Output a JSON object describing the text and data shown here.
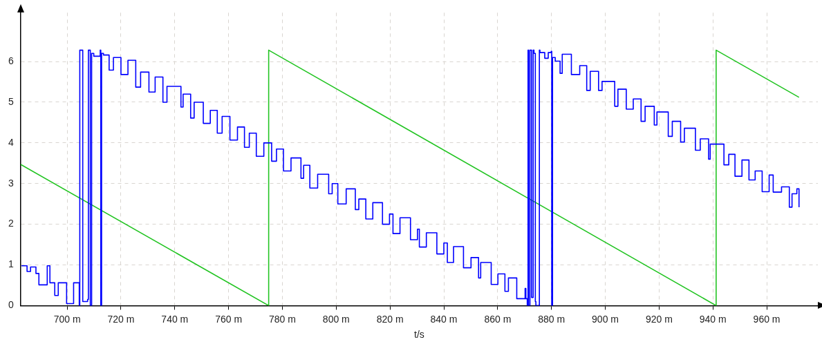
{
  "chart_data": {
    "type": "line",
    "xlabel": "t/s",
    "xlim": [
      682.7,
      979
    ],
    "ylim": [
      0,
      7.2
    ],
    "xticks": [
      {
        "value": 700,
        "label": "700 m"
      },
      {
        "value": 720,
        "label": "720 m"
      },
      {
        "value": 740,
        "label": "740 m"
      },
      {
        "value": 760,
        "label": "760 m"
      },
      {
        "value": 780,
        "label": "780 m"
      },
      {
        "value": 800,
        "label": "800 m"
      },
      {
        "value": 820,
        "label": "820 m"
      },
      {
        "value": 840,
        "label": "840 m"
      },
      {
        "value": 860,
        "label": "860 m"
      },
      {
        "value": 880,
        "label": "880 m"
      },
      {
        "value": 900,
        "label": "900 m"
      },
      {
        "value": 920,
        "label": "920 m"
      },
      {
        "value": 940,
        "label": "940 m"
      },
      {
        "value": 960,
        "label": "960 m"
      }
    ],
    "yticks": [
      0,
      1,
      2,
      3,
      4,
      5,
      6
    ],
    "grid": true,
    "legend": false,
    "marker": "none",
    "line_style": "solid",
    "series": [
      {
        "type": "step",
        "color": "#0000ff",
        "x": [
          683.0,
          685.1,
          686.4,
          688.4,
          689.5,
          692.6,
          693.6,
          695.4,
          696.7,
          699.8,
          702.4,
          704.5,
          704.7,
          705.5,
          705.8,
          707.6,
          707.9,
          708.4,
          708.6,
          709.1,
          709.9,
          712.3,
          712.5,
          712.8,
          713.5,
          715.6,
          717.2,
          720.0,
          722.6,
          725.5,
          727.3,
          730.4,
          732.7,
          735.6,
          737.1,
          742.3,
          743.1,
          745.9,
          747.2,
          750.6,
          753.2,
          755.8,
          757.6,
          760.5,
          763.3,
          765.9,
          767.7,
          770.3,
          773.1,
          776.0,
          777.8,
          780.4,
          783.2,
          786.9,
          787.9,
          790.2,
          793.1,
          797.2,
          798.5,
          800.6,
          803.7,
          807.1,
          808.4,
          811.0,
          813.6,
          817.2,
          819.8,
          821.1,
          823.7,
          827.6,
          830.2,
          830.9,
          833.5,
          837.4,
          840.0,
          841.3,
          843.6,
          847.3,
          850.1,
          852.9,
          853.7,
          857.6,
          860.1,
          862.7,
          864.0,
          867.1,
          870.2,
          870.5,
          871.0,
          871.3,
          871.5,
          872.0,
          872.4,
          872.6,
          873.2,
          873.5,
          874.0,
          874.2,
          875.2,
          875.5,
          875.7,
          877.5,
          878.8,
          879.9,
          880.1,
          880.4,
          881.4,
          883.2,
          884.0,
          887.4,
          890.5,
          893.1,
          894.4,
          897.5,
          898.8,
          903.5,
          904.7,
          907.8,
          910.4,
          913.3,
          914.8,
          918.2,
          919.2,
          923.4,
          924.9,
          928.0,
          929.4,
          933.5,
          935.3,
          938.4,
          939.0,
          944.1,
          945.9,
          948.2,
          950.8,
          953.4,
          955.7,
          958.3,
          960.9,
          962.4,
          965.5,
          968.4,
          969.4,
          971.2,
          972.0
        ],
        "values": [
          0.98,
          0.84,
          0.95,
          0.79,
          0.51,
          0.98,
          0.56,
          0.25,
          0.56,
          0.05,
          0.56,
          0,
          6.28,
          6.28,
          0.1,
          0.15,
          6.28,
          6.28,
          0,
          6.2,
          6.13,
          6.28,
          0,
          6.2,
          6.16,
          5.79,
          6.1,
          5.68,
          6.03,
          5.37,
          5.74,
          5.25,
          5.62,
          5.0,
          5.39,
          4.88,
          5.2,
          4.61,
          5.0,
          4.48,
          4.8,
          4.24,
          4.65,
          4.07,
          4.39,
          3.89,
          4.24,
          3.67,
          4.0,
          3.55,
          3.85,
          3.31,
          3.63,
          3.13,
          3.45,
          2.89,
          3.23,
          2.75,
          3.0,
          2.5,
          2.87,
          2.36,
          2.62,
          2.13,
          2.53,
          2.0,
          2.25,
          1.77,
          2.16,
          1.62,
          1.88,
          1.44,
          1.79,
          1.27,
          1.54,
          1.06,
          1.45,
          0.93,
          1.18,
          0.68,
          1.06,
          0.52,
          0.78,
          0.35,
          0.68,
          0.17,
          0.42,
          0.17,
          0,
          6.28,
          0,
          6.28,
          6.28,
          0.2,
          6.28,
          6.2,
          0.1,
          0,
          0,
          6.28,
          6.22,
          6.08,
          6.22,
          6.25,
          0,
          6.1,
          6.01,
          5.71,
          6.18,
          5.68,
          5.9,
          5.29,
          5.76,
          5.29,
          5.51,
          4.9,
          5.32,
          4.83,
          5.08,
          4.53,
          4.9,
          4.44,
          4.76,
          4.16,
          4.53,
          4.02,
          4.36,
          3.82,
          4.1,
          3.6,
          3.97,
          3.46,
          3.72,
          3.18,
          3.58,
          3.09,
          3.31,
          2.8,
          3.21,
          2.79,
          2.92,
          2.42,
          2.75,
          2.87,
          2.42
        ]
      },
      {
        "type": "line",
        "color": "#22c422",
        "x": [
          682.7,
          774.9,
          774.9,
          941.2,
          941.2,
          972.0
        ],
        "values": [
          3.47,
          0,
          6.28,
          0,
          6.28,
          5.12
        ]
      }
    ]
  }
}
